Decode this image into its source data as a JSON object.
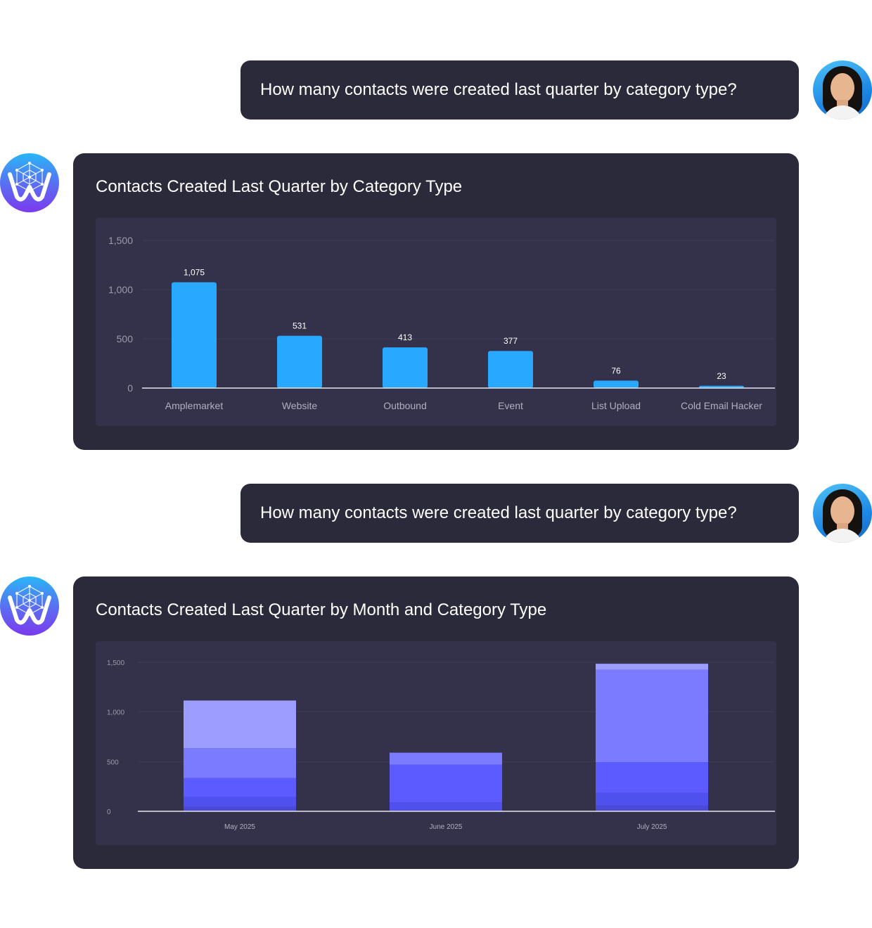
{
  "conversation": [
    {
      "role": "user",
      "text": "How many contacts were created last quarter by category type?"
    },
    {
      "role": "assistant",
      "chart_index": 0
    },
    {
      "role": "user",
      "text": "How many contacts were created last quarter by category type?"
    },
    {
      "role": "assistant",
      "chart_index": 1
    }
  ],
  "icons": {
    "user_avatar": "user-avatar-photo",
    "assistant_avatar": "assistant-logo-icon"
  },
  "colors": {
    "bubble_bg": "#2b2a3a",
    "plot_bg": "#33324a",
    "bar_blue": "#29a8ff",
    "stack_shades": [
      "#4a4ad9",
      "#5050ee",
      "#5b5bff",
      "#7b7bff",
      "#9d9dff"
    ]
  },
  "chart_data": [
    {
      "type": "bar",
      "title": "Contacts Created Last Quarter by Category Type",
      "categories": [
        "Amplemarket",
        "Website",
        "Outbound",
        "Event",
        "List Upload",
        "Cold Email Hacker"
      ],
      "values": [
        1075,
        531,
        413,
        377,
        76,
        23
      ],
      "data_labels": [
        "1,075",
        "531",
        "413",
        "377",
        "76",
        "23"
      ],
      "ylim": [
        0,
        1500
      ],
      "yticks": [
        0,
        500,
        1000,
        1500
      ],
      "ytick_labels": [
        "0",
        "500",
        "1,000",
        "1,500"
      ],
      "grid": true,
      "legend": "none"
    },
    {
      "type": "bar",
      "stacked": true,
      "title": "Contacts Created Last Quarter by Month and Category Type",
      "categories": [
        "May 2025",
        "June 2025",
        "July 2025"
      ],
      "series": [
        {
          "values": [
            45,
            10,
            55
          ]
        },
        {
          "values": [
            100,
            80,
            130
          ]
        },
        {
          "values": [
            190,
            380,
            310
          ]
        },
        {
          "values": [
            300,
            120,
            930
          ]
        },
        {
          "values": [
            480,
            0,
            60
          ]
        }
      ],
      "ylim": [
        0,
        1500
      ],
      "yticks": [
        0,
        500,
        1000,
        1500
      ],
      "ytick_labels": [
        "0",
        "500",
        "1,000",
        "1,500"
      ],
      "grid": true,
      "legend": "none"
    }
  ]
}
